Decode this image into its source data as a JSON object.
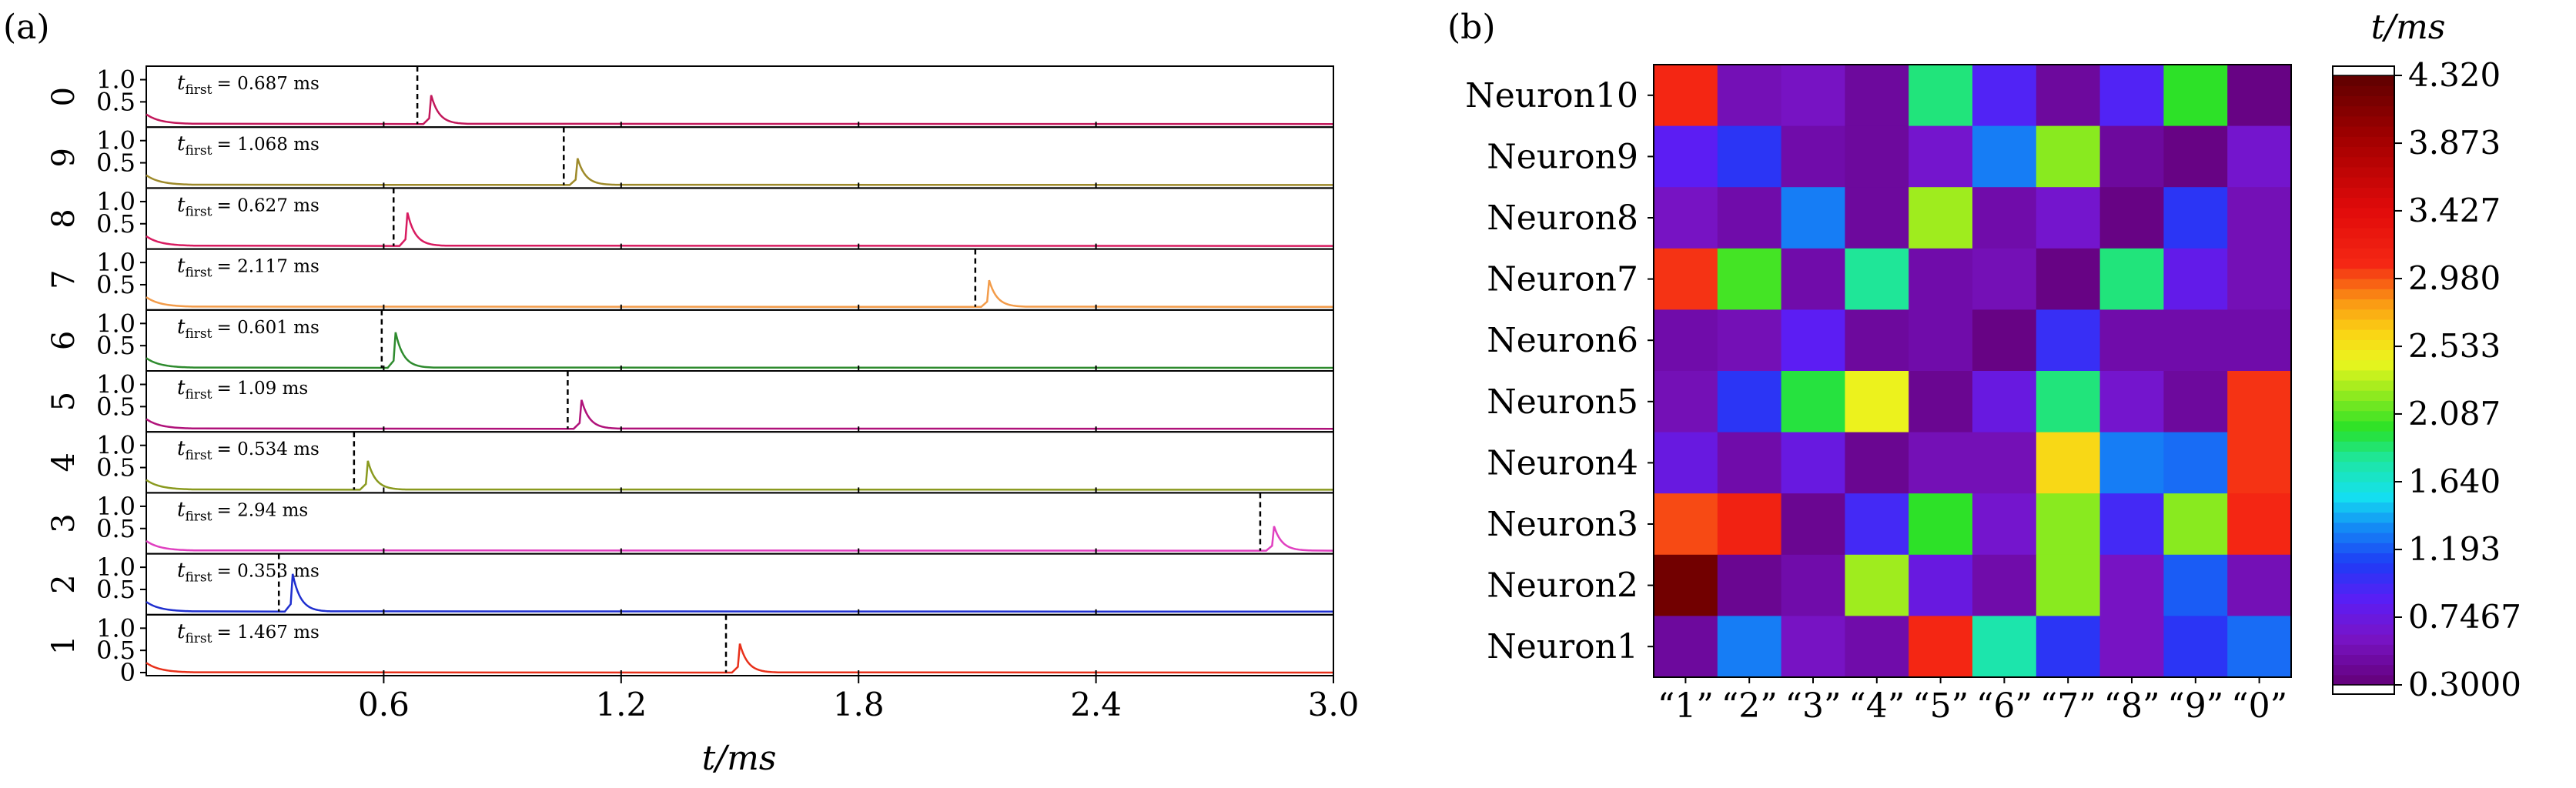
{
  "chart_data": [
    {
      "type": "line",
      "panel_label": "(a)",
      "xlabel": "t/ms",
      "xlim": [
        0.0,
        3.0
      ],
      "xticks": [
        0.6,
        1.2,
        1.8,
        2.4,
        3.0
      ],
      "xtick_labels": [
        "0.6",
        "1.2",
        "1.8",
        "2.4",
        "3.0"
      ],
      "ylim": [
        0,
        1.2
      ],
      "ytick_labels": [
        "1.0",
        "0.5"
      ],
      "bottom_ytick_labels": [
        "1.0",
        "0.5",
        "0"
      ],
      "annotation_prefix": "t",
      "annotation_sub": "first",
      "highlighted_digit": "2",
      "highlight_color": "#d62728",
      "series": [
        {
          "name": "0",
          "t_first_ms": 0.687,
          "peak_time_ms": 0.72,
          "peak": 0.65,
          "color": "#c2185b",
          "annotation": "= 0.687 ms"
        },
        {
          "name": "9",
          "t_first_ms": 1.068,
          "peak_time_ms": 1.09,
          "peak": 0.6,
          "color": "#9e8a2a",
          "annotation": "= 1.068 ms"
        },
        {
          "name": "8",
          "t_first_ms": 0.627,
          "peak_time_ms": 0.66,
          "peak": 0.75,
          "color": "#d81b60",
          "annotation": "= 0.627 ms"
        },
        {
          "name": "7",
          "t_first_ms": 2.117,
          "peak_time_ms": 2.13,
          "peak": 0.6,
          "color": "#f39c4a",
          "annotation": "= 2.117 ms"
        },
        {
          "name": "6",
          "t_first_ms": 0.601,
          "peak_time_ms": 0.63,
          "peak": 0.8,
          "color": "#2e8b2e",
          "annotation": "= 0.601 ms"
        },
        {
          "name": "5",
          "t_first_ms": 1.09,
          "peak_time_ms": 1.1,
          "peak": 0.65,
          "color": "#b0127a",
          "annotation": "= 1.09 ms"
        },
        {
          "name": "4",
          "t_first_ms": 0.534,
          "peak_time_ms": 0.56,
          "peak": 0.65,
          "color": "#8a9a1f",
          "annotation": "= 0.534 ms"
        },
        {
          "name": "3",
          "t_first_ms": 2.94,
          "peak_time_ms": 2.85,
          "peak": 0.55,
          "color": "#e040c0",
          "annotation": "= 2.94 ms"
        },
        {
          "name": "2",
          "t_first_ms": 0.353,
          "peak_time_ms": 0.37,
          "peak": 0.85,
          "color": "#1f2fcf",
          "annotation": "= 0.353 ms"
        },
        {
          "name": "1",
          "t_first_ms": 1.467,
          "peak_time_ms": 1.5,
          "peak": 0.65,
          "color": "#e8301a",
          "annotation": "= 1.467 ms"
        }
      ]
    },
    {
      "type": "heatmap",
      "panel_label": "(b)",
      "colorbar_title": "t/ms",
      "row_labels": [
        "Neuron10",
        "Neuron9",
        "Neuron8",
        "Neuron7",
        "Neuron6",
        "Neuron5",
        "Neuron4",
        "Neuron3",
        "Neuron2",
        "Neuron1"
      ],
      "col_labels": [
        "“1”",
        "“2”",
        "“3”",
        "“4”",
        "“5”",
        "“6”",
        "“7”",
        "“8”",
        "“9”",
        "“0”"
      ],
      "values": [
        [
          3.1,
          0.55,
          0.6,
          0.45,
          1.85,
          0.9,
          0.45,
          0.9,
          2.0,
          0.35
        ],
        [
          0.85,
          1.05,
          0.5,
          0.45,
          0.65,
          1.3,
          2.2,
          0.45,
          0.35,
          0.65
        ],
        [
          0.6,
          0.5,
          1.3,
          0.45,
          2.25,
          0.5,
          0.65,
          0.35,
          1.05,
          0.55
        ],
        [
          3.05,
          2.05,
          0.5,
          1.8,
          0.5,
          0.55,
          0.35,
          1.85,
          0.8,
          0.55
        ],
        [
          0.5,
          0.55,
          0.85,
          0.45,
          0.5,
          0.35,
          1.0,
          0.5,
          0.5,
          0.5
        ],
        [
          0.55,
          1.05,
          1.95,
          2.45,
          0.4,
          0.75,
          1.85,
          0.65,
          0.45,
          3.05
        ],
        [
          0.75,
          0.5,
          0.75,
          0.4,
          0.55,
          0.55,
          2.6,
          1.3,
          1.25,
          3.05
        ],
        [
          3.0,
          3.15,
          0.4,
          0.95,
          2.0,
          0.65,
          2.2,
          0.95,
          2.2,
          3.1
        ],
        [
          4.2,
          0.4,
          0.5,
          2.25,
          0.75,
          0.5,
          2.2,
          0.6,
          1.2,
          0.55
        ],
        [
          0.45,
          1.3,
          0.6,
          0.5,
          3.1,
          1.75,
          1.05,
          0.6,
          1.05,
          1.25
        ]
      ],
      "colorbar_range": [
        0.3,
        4.32
      ],
      "colorbar_tick_values": [
        4.32,
        3.873,
        3.427,
        2.98,
        2.533,
        2.087,
        1.64,
        1.193,
        0.7467,
        0.3
      ],
      "colorbar_tick_labels": [
        "4.320",
        "3.873",
        "3.427",
        "2.980",
        "2.533",
        "2.087",
        "1.640",
        "1.193",
        "0.7467",
        "0.3000"
      ]
    }
  ]
}
